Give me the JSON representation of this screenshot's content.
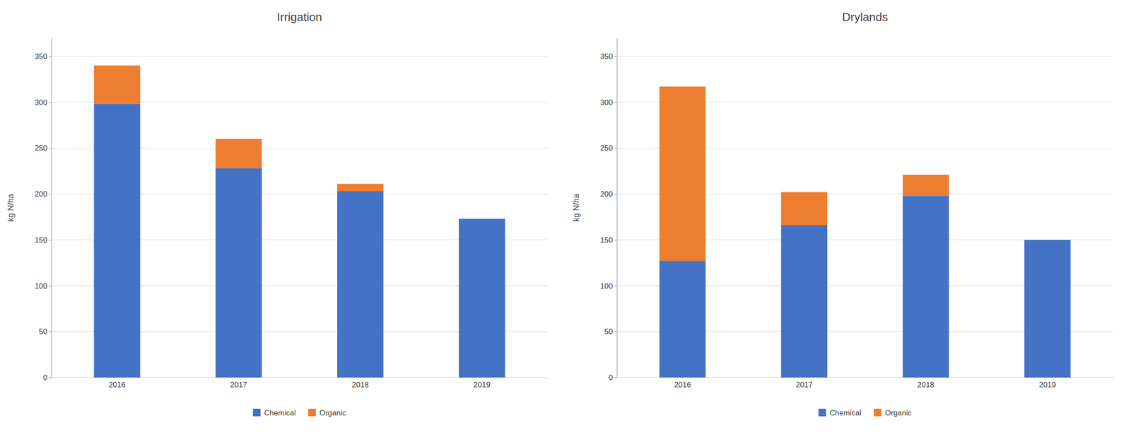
{
  "chart_data": [
    {
      "type": "bar",
      "title": "Irrigation",
      "stacked": true,
      "grid": true,
      "legend": "bottom",
      "categories": [
        "2016",
        "2017",
        "2018",
        "2019"
      ],
      "series": [
        {
          "name": "Chemical",
          "color": "#4472C4",
          "values": [
            298,
            228,
            203,
            173
          ]
        },
        {
          "name": "Organic",
          "color": "#ED7D31",
          "values": [
            42,
            32,
            8,
            0
          ]
        }
      ],
      "ylabel": "kg N/ha",
      "ylim": [
        0,
        370
      ],
      "yticks": [
        0,
        50,
        100,
        150,
        200,
        250,
        300,
        350
      ]
    },
    {
      "type": "bar",
      "title": "Drylands",
      "stacked": true,
      "grid": true,
      "legend": "bottom",
      "categories": [
        "2016",
        "2017",
        "2018",
        "2019"
      ],
      "series": [
        {
          "name": "Chemical",
          "color": "#4472C4",
          "values": [
            127,
            166,
            198,
            150
          ]
        },
        {
          "name": "Organic",
          "color": "#ED7D31",
          "values": [
            190,
            36,
            23,
            0
          ]
        }
      ],
      "ylabel": "kg N/ha",
      "ylim": [
        0,
        370
      ],
      "yticks": [
        0,
        50,
        100,
        150,
        200,
        250,
        300,
        350
      ]
    }
  ]
}
